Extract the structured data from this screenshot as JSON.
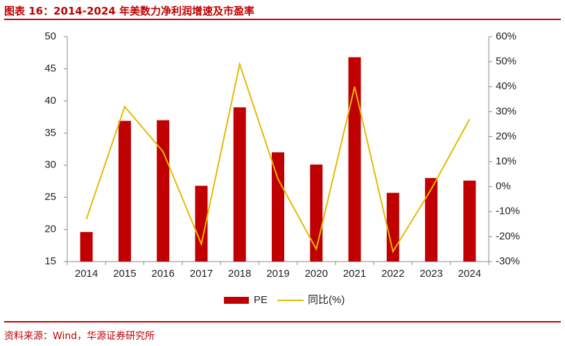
{
  "header": {
    "figure_label": "图表 16：",
    "title": "2014-2024 年美数力净利润增速及市盈率"
  },
  "footer": {
    "source": "资料来源：Wind，华源证券研究所"
  },
  "colors": {
    "accent": "#c00000",
    "bar": "#c00000",
    "line": "#e6b800"
  },
  "chart_data": {
    "type": "bar",
    "categories": [
      "2014",
      "2015",
      "2016",
      "2017",
      "2018",
      "2019",
      "2020",
      "2021",
      "2022",
      "2023",
      "2024"
    ],
    "series": [
      {
        "name": "PE",
        "type": "bar",
        "axis": "left",
        "values": [
          19.6,
          36.9,
          37.0,
          26.8,
          39.0,
          32.0,
          30.1,
          46.8,
          25.7,
          28.0,
          27.6
        ]
      },
      {
        "name": "同比(%)",
        "type": "line",
        "axis": "right",
        "values": [
          -13,
          32,
          14,
          -23,
          49,
          3,
          -25,
          40,
          -26,
          -1,
          27
        ]
      }
    ],
    "ylim": [
      15,
      50
    ],
    "y_ticks": [
      "15",
      "20",
      "25",
      "30",
      "35",
      "40",
      "45",
      "50"
    ],
    "y2lim": [
      -30,
      60
    ],
    "y2_ticks": [
      "-30%",
      "-20%",
      "-10%",
      "0%",
      "10%",
      "20%",
      "30%",
      "40%",
      "50%",
      "60%"
    ],
    "grid": false,
    "legend_position": "bottom"
  }
}
